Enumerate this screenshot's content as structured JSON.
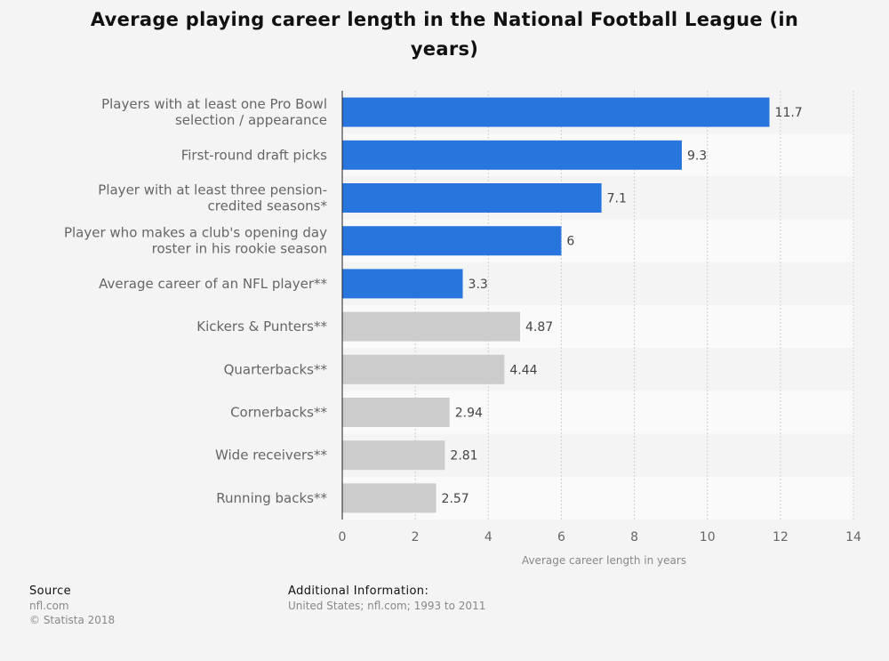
{
  "chart_data": {
    "type": "bar",
    "orientation": "horizontal",
    "title": "Average playing career length in the National Football League (in years)",
    "xlabel": "Average career length in years",
    "xlim": [
      0,
      14
    ],
    "xticks": [
      "0",
      "2",
      "4",
      "6",
      "8",
      "10",
      "12",
      "14"
    ],
    "grid": true,
    "categories": [
      [
        "Players with at least one Pro Bowl",
        "selection / appearance"
      ],
      [
        "First-round draft picks"
      ],
      [
        "Player with at least three pension-",
        "credited seasons*"
      ],
      [
        "Player who makes a club's opening day",
        "roster in his rookie season"
      ],
      [
        "Average career of an NFL player**"
      ],
      [
        "Kickers & Punters**"
      ],
      [
        "Quarterbacks**"
      ],
      [
        "Cornerbacks**"
      ],
      [
        "Wide receivers**"
      ],
      [
        "Running backs**"
      ]
    ],
    "values": [
      11.7,
      9.3,
      7.1,
      6,
      3.3,
      4.87,
      4.44,
      2.94,
      2.81,
      2.57
    ],
    "value_labels": [
      "11.7",
      "9.3",
      "7.1",
      "6",
      "3.3",
      "4.87",
      "4.44",
      "2.94",
      "2.81",
      "2.57"
    ],
    "bar_colors": [
      "#2876dd",
      "#2876dd",
      "#2876dd",
      "#2876dd",
      "#2876dd",
      "#cccccc",
      "#cccccc",
      "#cccccc",
      "#cccccc",
      "#cccccc"
    ]
  },
  "colors": {
    "accent": "#2876dd",
    "secondary": "#cccccc",
    "background": "#f4f4f4",
    "band_light": "#fafafa"
  },
  "footer": {
    "source_heading": "Source",
    "source_name": "nfl.com",
    "copyright": "© Statista 2018",
    "info_heading": "Additional Information:",
    "info_text": "United States; nfl.com; 1993 to 2011"
  }
}
